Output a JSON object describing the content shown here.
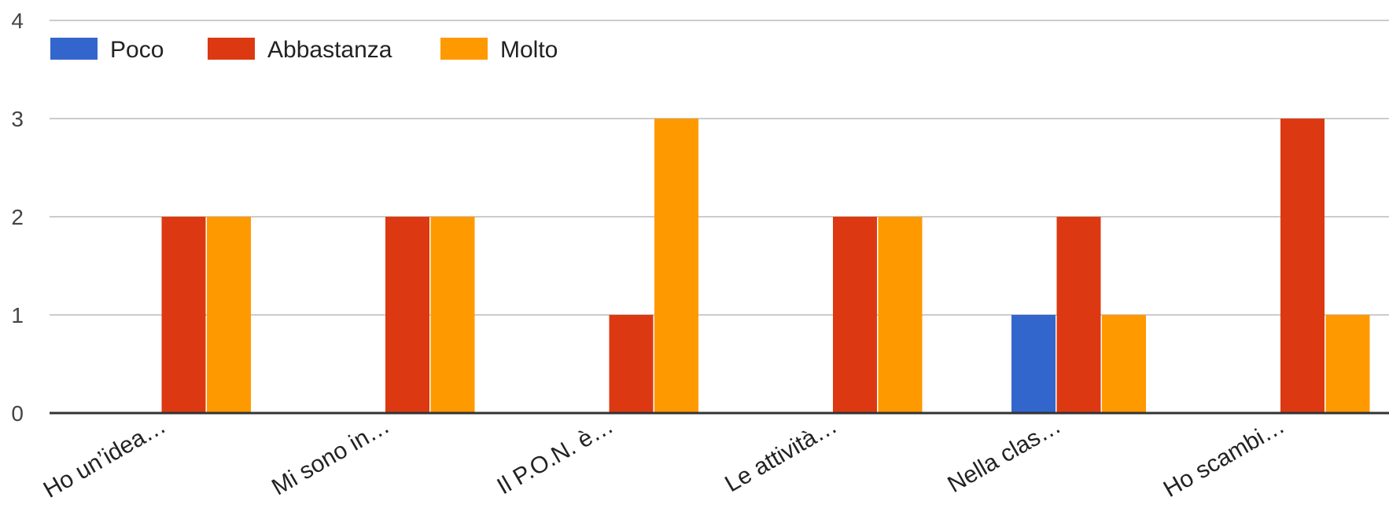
{
  "chart_data": {
    "type": "bar",
    "title": "",
    "xlabel": "",
    "ylabel": "",
    "categories": [
      "Ho un’idea…",
      "Mi sono in…",
      "Il P.O.N. è…",
      "Le attività…",
      "Nella clas…",
      "Ho scambi…"
    ],
    "series": [
      {
        "name": "Poco",
        "color": "#3366cc",
        "values": [
          0,
          0,
          0,
          0,
          1,
          0
        ]
      },
      {
        "name": "Abbastanza",
        "color": "#dc3912",
        "values": [
          2,
          2,
          1,
          2,
          2,
          3
        ]
      },
      {
        "name": "Molto",
        "color": "#ff9900",
        "values": [
          2,
          2,
          3,
          2,
          1,
          1
        ]
      }
    ],
    "ylim": [
      0,
      4
    ],
    "yticks": [
      "0",
      "1",
      "2",
      "3",
      "4"
    ],
    "grid": true,
    "legend_position": "top-left"
  }
}
